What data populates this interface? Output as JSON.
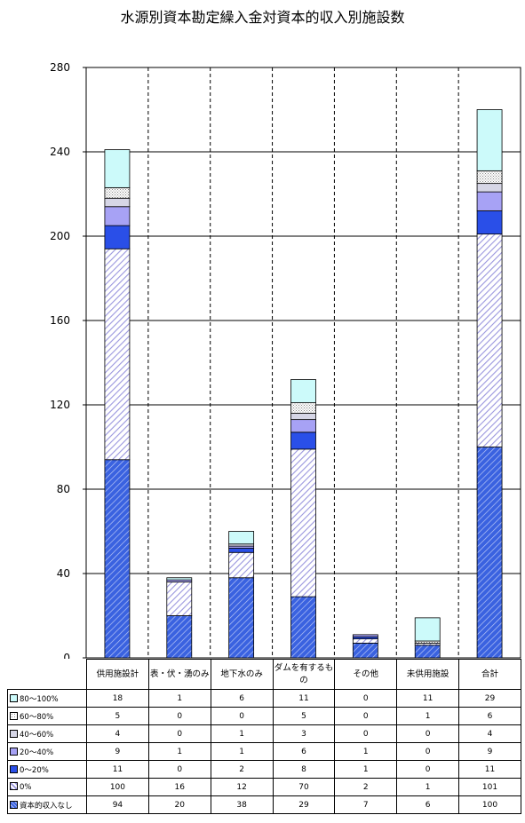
{
  "chart_data": {
    "type": "bar",
    "stacked": true,
    "title": "水源別資本勘定繰入金対資本的収入別施設数",
    "categories": [
      "供用施設計",
      "表・伏・湧のみ",
      "地下水のみ",
      "ダムを有するもの",
      "その他",
      "未供用施設",
      "合計"
    ],
    "series": [
      {
        "name": "資本的収入なし",
        "values": [
          94,
          20,
          38,
          29,
          7,
          6,
          100
        ],
        "color": "#3a62e0",
        "pattern": "hatch-dark"
      },
      {
        "name": "0%",
        "values": [
          100,
          16,
          12,
          70,
          2,
          1,
          101
        ],
        "color": "#8e8ede",
        "pattern": "hatch-light"
      },
      {
        "name": "0～20%",
        "values": [
          11,
          0,
          2,
          8,
          1,
          0,
          11
        ],
        "color": "#2a4fe8",
        "pattern": "solid"
      },
      {
        "name": "20～40%",
        "values": [
          9,
          1,
          1,
          6,
          1,
          0,
          9
        ],
        "color": "#a7a2f5",
        "pattern": "solid"
      },
      {
        "name": "40～60%",
        "values": [
          4,
          0,
          1,
          3,
          0,
          0,
          4
        ],
        "color": "#d6d6e6",
        "pattern": "solid"
      },
      {
        "name": "60～80%",
        "values": [
          5,
          0,
          0,
          5,
          0,
          1,
          6
        ],
        "color": "#e4e4e4",
        "pattern": "dots"
      },
      {
        "name": "80～100%",
        "values": [
          18,
          1,
          6,
          11,
          0,
          11,
          29
        ],
        "color": "#ccfafa",
        "pattern": "solid"
      }
    ],
    "yaxis": {
      "min": 0,
      "max": 280,
      "ticks": [
        "0",
        "40",
        "80",
        "120",
        "160",
        "200",
        "240",
        "280"
      ]
    },
    "grid": {
      "horizontal": "solid",
      "vertical": "dashed"
    },
    "legend": "table-below"
  }
}
